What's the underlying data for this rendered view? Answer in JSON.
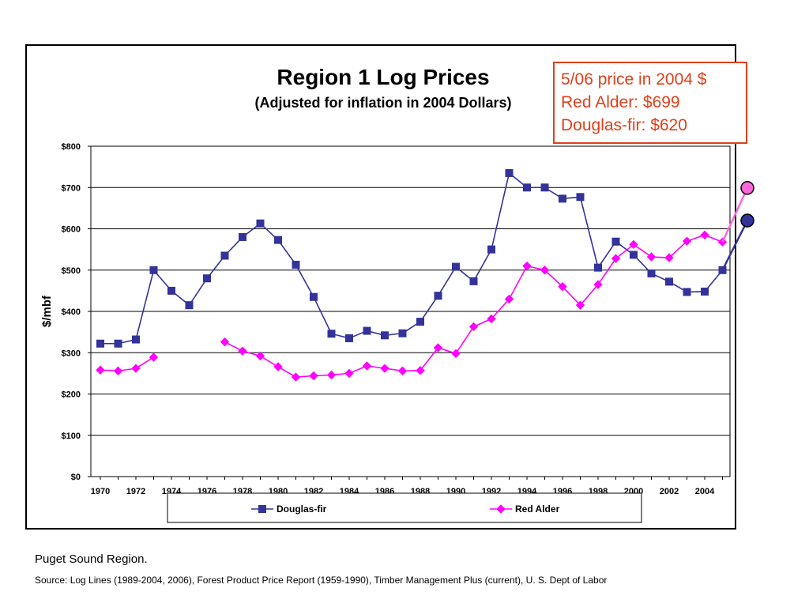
{
  "chart_data": {
    "type": "line",
    "title": "Region 1 Log Prices",
    "subtitle": "(Adjusted for inflation in 2004 Dollars)",
    "xlabel": "",
    "ylabel": "$/mbf",
    "ylim": [
      0,
      800
    ],
    "yticks": [
      0,
      100,
      200,
      300,
      400,
      500,
      600,
      700,
      800
    ],
    "ytick_labels": [
      "$0",
      "$100",
      "$200",
      "$300",
      "$400",
      "$500",
      "$600",
      "$700",
      "$800"
    ],
    "x": [
      1970,
      1971,
      1972,
      1973,
      1974,
      1975,
      1976,
      1977,
      1978,
      1979,
      1980,
      1981,
      1982,
      1983,
      1984,
      1985,
      1986,
      1987,
      1988,
      1989,
      1990,
      1991,
      1992,
      1993,
      1994,
      1995,
      1996,
      1997,
      1998,
      1999,
      2000,
      2001,
      2002,
      2003,
      2004,
      2005
    ],
    "xtick_labels": [
      "1970",
      "1972",
      "1974",
      "1976",
      "1978",
      "1980",
      "1982",
      "1984",
      "1986",
      "1988",
      "1990",
      "1992",
      "1994",
      "1996",
      "1998",
      "2000",
      "2002",
      "2004"
    ],
    "grid": true,
    "legend_position": "bottom",
    "series": [
      {
        "name": "Douglas-fir",
        "color": "#333399",
        "marker": "square",
        "values": [
          322,
          322,
          332,
          500,
          450,
          415,
          480,
          535,
          580,
          613,
          573,
          513,
          435,
          346,
          335,
          353,
          342,
          347,
          375,
          438,
          508,
          473,
          550,
          735,
          700,
          700,
          673,
          677,
          506,
          569,
          537,
          492,
          472,
          447,
          448,
          500
        ]
      },
      {
        "name": "Red Alder",
        "color": "#ff00ff",
        "marker": "diamond",
        "values": [
          258,
          256,
          262,
          289,
          null,
          null,
          null,
          326,
          304,
          292,
          266,
          241,
          244,
          246,
          250,
          268,
          262,
          256,
          257,
          312,
          298,
          363,
          382,
          430,
          510,
          500,
          460,
          415,
          465,
          528,
          562,
          532,
          530,
          570,
          585,
          568
        ]
      }
    ],
    "extension_points": [
      {
        "series": "Douglas-fir",
        "label": "5/06",
        "value": 620,
        "color": "#333399"
      },
      {
        "series": "Red Alder",
        "label": "5/06",
        "value": 699,
        "color": "#ff66dd"
      }
    ]
  },
  "callout": {
    "line1": "5/06 price in 2004 $",
    "line2": "Red Alder: $699",
    "line3": "Douglas-fir: $620",
    "color": "#e0401a"
  },
  "footnote": "Puget Sound Region.",
  "source": "Source: Log Lines (1989-2004, 2006), Forest Product Price Report (1959-1990), Timber Management Plus (current), U. S. Dept of Labor"
}
